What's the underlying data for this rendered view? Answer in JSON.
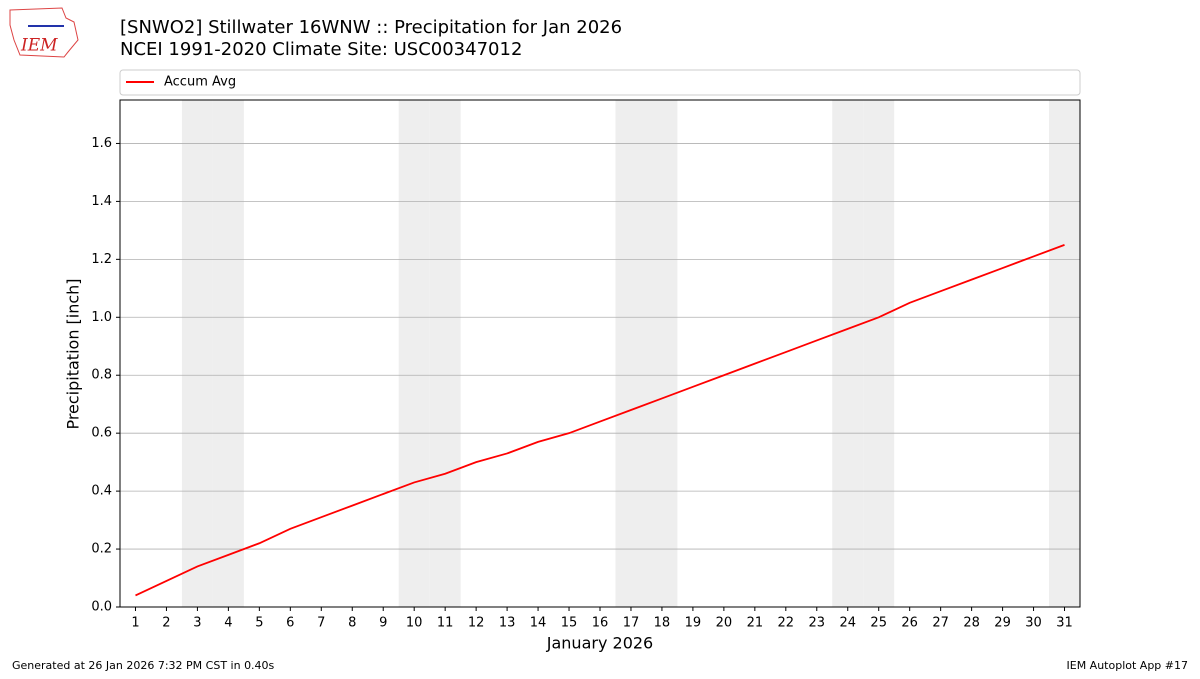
{
  "logo_text": "IEM",
  "footer_left": "Generated at 26 Jan 2026 7:32 PM CST in 0.40s",
  "footer_right": "IEM Autoplot App #17",
  "chart_data": {
    "type": "line",
    "title": "[SNWO2] Stillwater 16WNW :: Precipitation for Jan 2026",
    "subtitle": "NCEI 1991-2020 Climate Site: USC00347012",
    "x_label": "January 2026",
    "y_label": "Precipitation [inch]",
    "x": [
      1,
      2,
      3,
      4,
      5,
      6,
      7,
      8,
      9,
      10,
      11,
      12,
      13,
      14,
      15,
      16,
      17,
      18,
      19,
      20,
      21,
      22,
      23,
      24,
      25,
      26,
      27,
      28,
      29,
      30,
      31
    ],
    "series": [
      {
        "name": "Accum Avg",
        "color": "#ff0000",
        "values": [
          0.04,
          0.09,
          0.14,
          0.18,
          0.22,
          0.27,
          0.31,
          0.35,
          0.39,
          0.43,
          0.46,
          0.5,
          0.53,
          0.57,
          0.6,
          0.64,
          0.68,
          0.72,
          0.76,
          0.8,
          0.84,
          0.88,
          0.92,
          0.96,
          1.0,
          1.05,
          1.09,
          1.13,
          1.17,
          1.21,
          1.25
        ]
      }
    ],
    "shaded_x": [
      3,
      4,
      10,
      11,
      17,
      18,
      24,
      25,
      31
    ],
    "shade_color": "#eeeeee",
    "xlim": [
      0.5,
      31.5
    ],
    "xticks": [
      1,
      2,
      3,
      4,
      5,
      6,
      7,
      8,
      9,
      10,
      11,
      12,
      13,
      14,
      15,
      16,
      17,
      18,
      19,
      20,
      21,
      22,
      23,
      24,
      25,
      26,
      27,
      28,
      29,
      30,
      31
    ],
    "ylim": [
      0,
      1.75
    ],
    "yticks": [
      {
        "value": 0,
        "label": "0.0"
      },
      {
        "value": 0.2,
        "label": "0.2"
      },
      {
        "value": 0.4,
        "label": "0.4"
      },
      {
        "value": 0.6,
        "label": "0.6"
      },
      {
        "value": 0.8,
        "label": "0.8"
      },
      {
        "value": 1,
        "label": "1.0"
      },
      {
        "value": 1.2,
        "label": "1.2"
      },
      {
        "value": 1.4,
        "label": "1.4"
      },
      {
        "value": 1.6,
        "label": "1.6"
      }
    ],
    "grid": true,
    "legend": "top"
  }
}
